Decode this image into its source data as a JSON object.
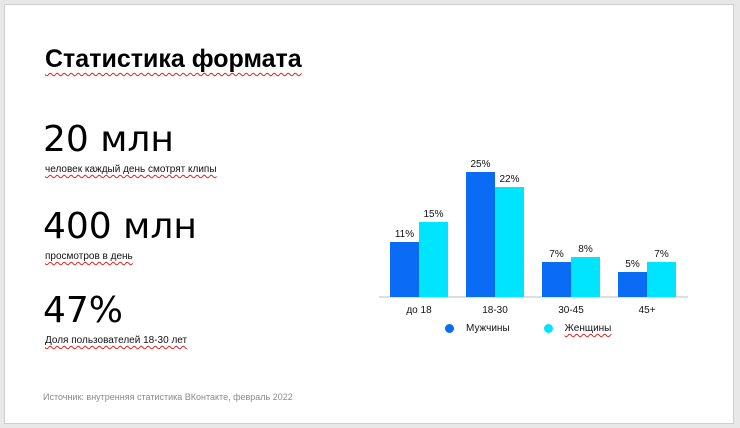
{
  "slide": {
    "title": "Статистика формата",
    "stats": [
      {
        "value": "20 млн",
        "caption": "человек каждый день смотрят клипы"
      },
      {
        "value": "400 млн",
        "caption": "просмотров в день"
      },
      {
        "value": "47%",
        "caption": "Доля пользователей 18-30 лет"
      }
    ],
    "source": "Источник: внутренняя  статистика ВКонтакте, февраль 2022"
  },
  "colors": {
    "men": "#0a6cf5",
    "women": "#00e5ff",
    "axis": "#bfbfbf"
  },
  "chart_data": {
    "type": "bar",
    "categories": [
      "до 18",
      "18-30",
      "30-45",
      "45+"
    ],
    "series": [
      {
        "name": "Мужчины",
        "values": [
          11,
          25,
          7,
          5
        ],
        "labels": [
          "11%",
          "25%",
          "7%",
          "5%"
        ]
      },
      {
        "name": "Женщины",
        "values": [
          15,
          22,
          8,
          7
        ],
        "labels": [
          "15%",
          "22%",
          "8%",
          "7%"
        ]
      }
    ],
    "ylim": [
      0,
      25
    ],
    "grid": false,
    "legend": "bottom"
  }
}
